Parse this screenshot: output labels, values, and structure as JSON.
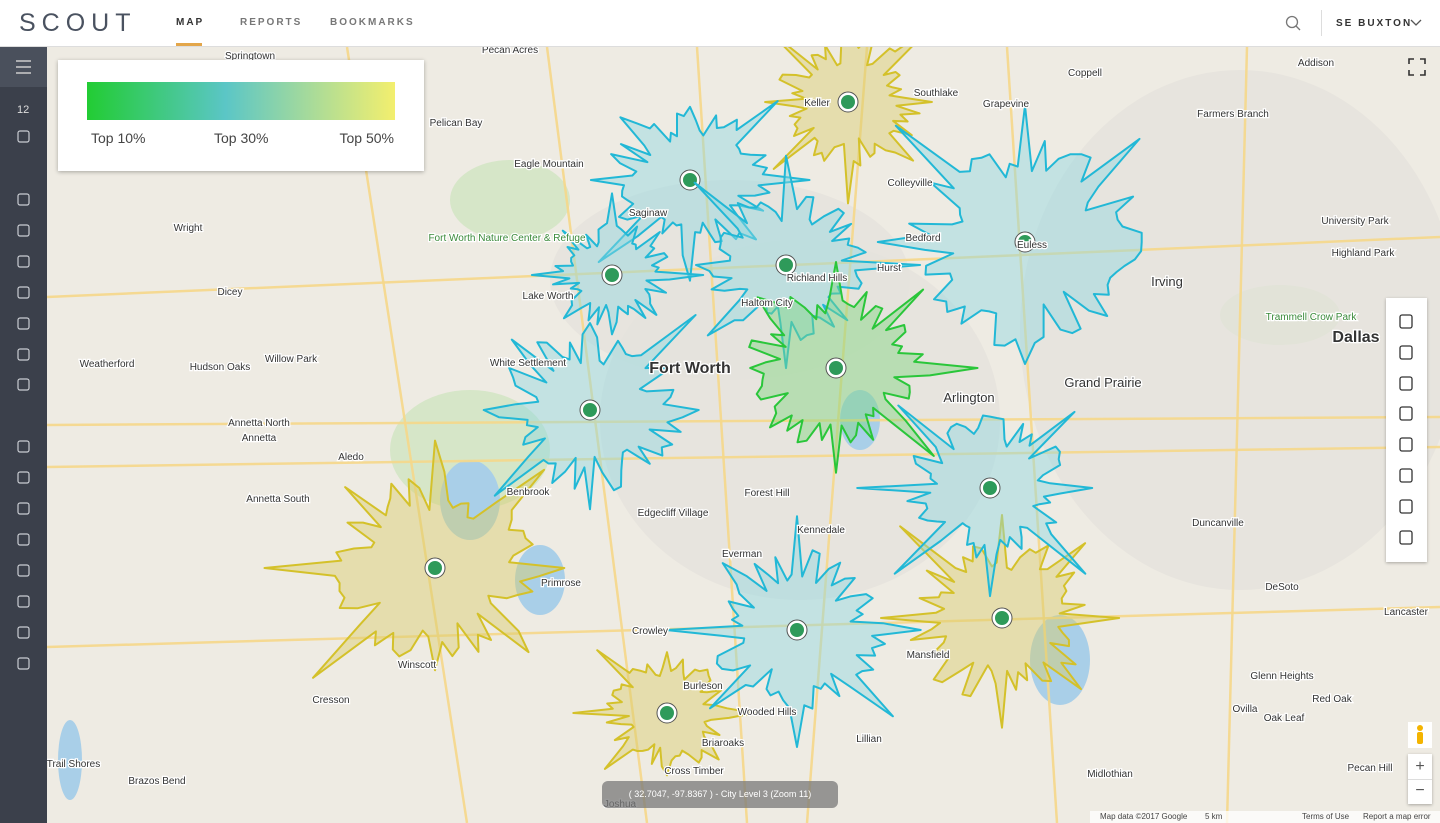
{
  "header": {
    "logo": "SCOUT",
    "nav": [
      "MAP",
      "REPORTS",
      "BOOKMARKS"
    ],
    "user": "SE BUXTON"
  },
  "sidebar": {
    "badge": "12"
  },
  "legend": {
    "labels": [
      "Top 10%",
      "Top 30%",
      "Top 50%"
    ]
  },
  "map": {
    "labels": [
      "Springtown",
      "Pecan Acres",
      "Keller",
      "Southlake",
      "Coppell",
      "Addison",
      "Grapevine",
      "Farmers Branch",
      "Pelican Bay",
      "Eagle Mountain",
      "Colleyville",
      "Saginaw",
      "Bedford",
      "Euless",
      "University Park",
      "Wright",
      "Fort Worth Nature Center & Refuge",
      "Hurst",
      "Highland Park",
      "Irving",
      "Dicey",
      "Lake Worth",
      "Haltom City",
      "Richland Hills",
      "Trammell Crow Park",
      "Dallas",
      "Weatherford",
      "Hudson Oaks",
      "Willow Park",
      "White Settlement",
      "Fort Worth",
      "Grand Prairie",
      "Arlington",
      "Annetta North",
      "Annetta",
      "Aledo",
      "Forest Hill",
      "Benbrook",
      "Annetta South",
      "Edgecliff Village",
      "Duncanville",
      "Kennedale",
      "Everman",
      "Primrose",
      "DeSoto",
      "Lancaster",
      "Crowley",
      "Mansfield",
      "Winscott",
      "Glenn Heights",
      "Burleson",
      "Cresson",
      "Ovilla",
      "Red Oak",
      "Wooded Hills",
      "Oak Leaf",
      "Briaroaks",
      "Lillian",
      "Oak Trail Shores",
      "Cross Timber",
      "Pecan Hill",
      "Midlothian",
      "Brazos Bend",
      "Joshua"
    ]
  },
  "status": "( 32.7047, -97.8367 ) - City Level 3 (Zoom 11)",
  "footer": [
    "Map data ©2017 Google",
    "5 km",
    "Terms of Use",
    "Report a map error"
  ]
}
